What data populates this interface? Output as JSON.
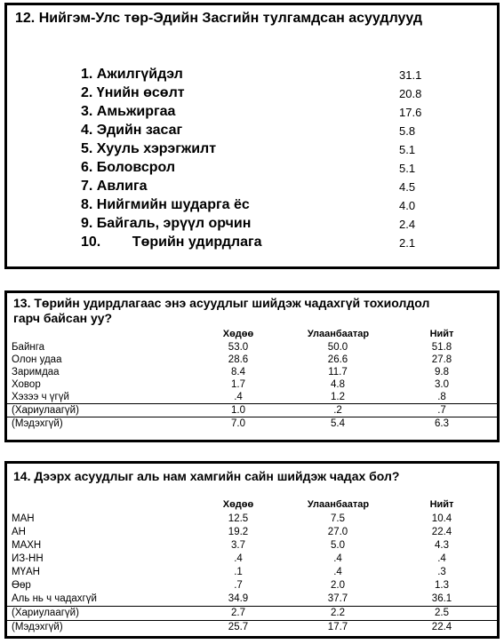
{
  "q12": {
    "title": "12. Нийгэм-Улс төр-Эдийн Засгийн тулгамдсан асуудлууд",
    "items": [
      {
        "label": "1. Ажилгүйдэл",
        "value": "31.1"
      },
      {
        "label": "2. Үнийн өсөлт",
        "value": "20.8"
      },
      {
        "label": "3. Амьжиргаа",
        "value": "17.6"
      },
      {
        "label": "4. Эдийн засаг",
        "value": "5.8"
      },
      {
        "label": "5. Хууль хэрэгжилт",
        "value": "5.1"
      },
      {
        "label": "6. Боловсрол",
        "value": "5.1"
      },
      {
        "label": "7. Авлига",
        "value": "4.5"
      },
      {
        "label": "8. Нийгмийн шударга ёс",
        "value": "4.0"
      },
      {
        "label": "9. Байгаль, эрүүл орчин",
        "value": "2.4"
      },
      {
        "label": "10.        Төрийн удирдлага",
        "value": "2.1"
      }
    ]
  },
  "q13": {
    "title_line1": "13. Төрийн удирдлагаас энэ асуудлыг шийдэж чадахгүй тохиолдол",
    "title_line2": "гарч байсан уу?",
    "columns": [
      "Хөдөө",
      "Улаанбаатар",
      "Нийт"
    ],
    "rows": [
      {
        "label": "Байнга",
        "values": [
          "53.0",
          "50.0",
          "51.8"
        ]
      },
      {
        "label": "Олон удаа",
        "values": [
          "28.6",
          "26.6",
          "27.8"
        ]
      },
      {
        "label": "Заримдаа",
        "values": [
          "8.4",
          "11.7",
          "9.8"
        ]
      },
      {
        "label": "Ховор",
        "values": [
          "1.7",
          "4.8",
          "3.0"
        ]
      },
      {
        "label": "Хэзээ ч үгүй",
        "values": [
          ".4",
          "1.2",
          ".8"
        ]
      },
      {
        "label": "(Хариулаагүй)",
        "values": [
          "1.0",
          ".2",
          ".7"
        ]
      },
      {
        "label": "(Мэдэхгүй)",
        "values": [
          "7.0",
          "5.4",
          "6.3"
        ]
      }
    ]
  },
  "q14": {
    "title": "14. Дээрх асуудлыг аль нам хамгийн сайн шийдэж чадах бол?",
    "columns": [
      "Хөдөө",
      "Улаанбаатар",
      "Нийт"
    ],
    "rows": [
      {
        "label": "МАН",
        "values": [
          "12.5",
          "7.5",
          "10.4"
        ]
      },
      {
        "label": "АН",
        "values": [
          "19.2",
          "27.0",
          "22.4"
        ]
      },
      {
        "label": "МАХН",
        "values": [
          "3.7",
          "5.0",
          "4.3"
        ]
      },
      {
        "label": "ИЗ-НН",
        "values": [
          ".4",
          ".4",
          ".4"
        ]
      },
      {
        "label": "МҮАН",
        "values": [
          ".1",
          ".4",
          ".3"
        ]
      },
      {
        "label": "Өөр",
        "values": [
          ".7",
          "2.0",
          "1.3"
        ]
      },
      {
        "label": "Аль нь ч чадахгүй",
        "values": [
          "34.9",
          "37.7",
          "36.1"
        ]
      },
      {
        "label": "(Хариулаагүй)",
        "values": [
          "2.7",
          "2.2",
          "2.5"
        ]
      },
      {
        "label": "(Мэдэхгүй)",
        "values": [
          "25.7",
          "17.7",
          "22.4"
        ]
      }
    ]
  }
}
